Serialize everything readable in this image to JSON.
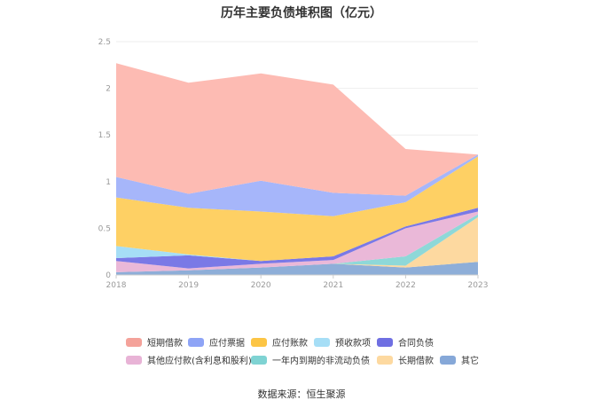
{
  "chart_data": {
    "type": "area",
    "title": "历年主要负债堆积图（亿元）",
    "categories": [
      "2018",
      "2019",
      "2020",
      "2021",
      "2022",
      "2023"
    ],
    "ylim": [
      0,
      2.5
    ],
    "yticks": [
      "0",
      "0.5",
      "1",
      "1.5",
      "2",
      "2.5"
    ],
    "grid": true,
    "legend_position": "bottom",
    "series": [
      {
        "name": "其它",
        "color": "#8eaed8",
        "values": [
          0.03,
          0.05,
          0.08,
          0.12,
          0.08,
          0.14
        ]
      },
      {
        "name": "长期借款",
        "color": "#fdd9a0",
        "values": [
          0.0,
          0.0,
          0.0,
          0.0,
          0.02,
          0.48
        ]
      },
      {
        "name": "一年内到期的非流动负债",
        "color": "#8ed8d8",
        "values": [
          0.0,
          0.0,
          0.0,
          0.0,
          0.1,
          0.03
        ]
      },
      {
        "name": "其他应付款(含利息和股利)",
        "color": "#eab8d8",
        "values": [
          0.12,
          0.02,
          0.04,
          0.04,
          0.3,
          0.03
        ]
      },
      {
        "name": "合同负债",
        "color": "#7a79e6",
        "values": [
          0.03,
          0.14,
          0.03,
          0.04,
          0.02,
          0.04
        ]
      },
      {
        "name": "预收款项",
        "color": "#a6def6",
        "values": [
          0.13,
          0.01,
          0.0,
          0.0,
          0.0,
          0.0
        ]
      },
      {
        "name": "应付账款",
        "color": "#fed064",
        "values": [
          0.52,
          0.5,
          0.53,
          0.43,
          0.26,
          0.55
        ]
      },
      {
        "name": "应付票据",
        "color": "#a6b6fa",
        "values": [
          0.22,
          0.15,
          0.33,
          0.25,
          0.07,
          0.02
        ]
      },
      {
        "name": "短期借款",
        "color": "#fdbbb3",
        "values": [
          1.22,
          1.19,
          1.15,
          1.16,
          0.5,
          0.0
        ]
      }
    ]
  },
  "legend_items": [
    {
      "name": "短期借款",
      "color": "#f4a29a"
    },
    {
      "name": "应付票据",
      "color": "#8ea4f6"
    },
    {
      "name": "应付账款",
      "color": "#fcc545"
    },
    {
      "name": "预收款项",
      "color": "#a6def6"
    },
    {
      "name": "合同负债",
      "color": "#6f6fe2"
    },
    {
      "name": "其他应付款(含利息和股利)",
      "color": "#e8b3d6"
    },
    {
      "name": "一年内到期的非流动负债",
      "color": "#7fd3d3"
    },
    {
      "name": "长期借款",
      "color": "#fdd9a0"
    },
    {
      "name": "其它",
      "color": "#86a8d8"
    }
  ],
  "source": "数据来源：恒生聚源"
}
